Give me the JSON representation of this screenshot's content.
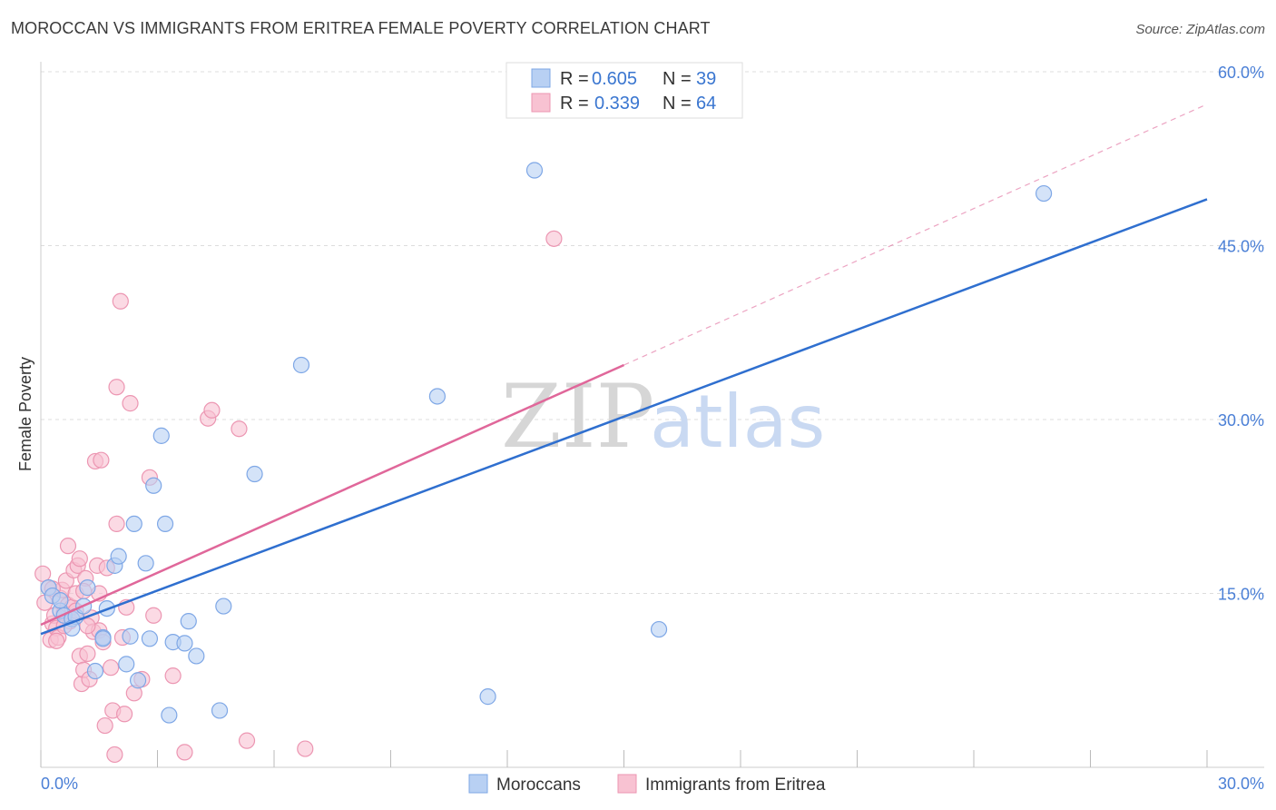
{
  "title": "MOROCCAN VS IMMIGRANTS FROM ERITREA FEMALE POVERTY CORRELATION CHART",
  "source": "Source: ZipAtlas.com",
  "watermark": {
    "zip": "ZIP",
    "atlas": "atlas"
  },
  "legend": {
    "r_label": "R =",
    "n_label": "N =",
    "rows": [
      {
        "r": "0.605",
        "n": "39"
      },
      {
        "r": "0.339",
        "n": "64"
      }
    ]
  },
  "colors": {
    "blue_fill": "#b8d0f3",
    "blue_stroke": "#7ea7e6",
    "blue_line": "#2f6fcf",
    "pink_fill": "#f8c2d2",
    "pink_stroke": "#ec96b2",
    "pink_line": "#e0679a",
    "grid": "#dddddd",
    "axis_text": "#4a7fd6"
  },
  "chart_data": {
    "type": "scatter",
    "title": "MOROCCAN VS IMMIGRANTS FROM ERITREA FEMALE POVERTY CORRELATION CHART",
    "xlabel": "",
    "ylabel": "Female Poverty",
    "xlim": [
      0,
      30
    ],
    "ylim": [
      0,
      60
    ],
    "x_tick_labels": [
      "0.0%",
      "30.0%"
    ],
    "y_ticks": [
      15,
      30,
      45,
      60
    ],
    "y_tick_labels": [
      "15.0%",
      "30.0%",
      "45.0%",
      "60.0%"
    ],
    "grid": true,
    "legend_position": "bottom-center",
    "series": [
      {
        "name": "Moroccans",
        "r": 0.605,
        "n": 39,
        "trend": {
          "x": [
            0,
            30
          ],
          "y": [
            11.5,
            49.0
          ],
          "style": "solid"
        },
        "points": [
          {
            "x": 0.2,
            "y": 15.5
          },
          {
            "x": 0.3,
            "y": 14.8
          },
          {
            "x": 0.5,
            "y": 13.5
          },
          {
            "x": 0.5,
            "y": 14.4
          },
          {
            "x": 0.6,
            "y": 13.1
          },
          {
            "x": 0.8,
            "y": 12.8
          },
          {
            "x": 0.9,
            "y": 13.0
          },
          {
            "x": 0.8,
            "y": 12.0
          },
          {
            "x": 1.1,
            "y": 13.9
          },
          {
            "x": 1.2,
            "y": 15.5
          },
          {
            "x": 1.4,
            "y": 8.3
          },
          {
            "x": 1.6,
            "y": 11.2
          },
          {
            "x": 1.7,
            "y": 13.7
          },
          {
            "x": 1.9,
            "y": 17.4
          },
          {
            "x": 2.0,
            "y": 18.2
          },
          {
            "x": 2.2,
            "y": 8.9
          },
          {
            "x": 2.3,
            "y": 11.3
          },
          {
            "x": 2.4,
            "y": 21.0
          },
          {
            "x": 2.5,
            "y": 7.5
          },
          {
            "x": 2.7,
            "y": 17.6
          },
          {
            "x": 2.8,
            "y": 11.1
          },
          {
            "x": 2.9,
            "y": 24.3
          },
          {
            "x": 3.1,
            "y": 28.6
          },
          {
            "x": 3.2,
            "y": 21.0
          },
          {
            "x": 3.3,
            "y": 4.5
          },
          {
            "x": 3.4,
            "y": 10.8
          },
          {
            "x": 3.7,
            "y": 10.7
          },
          {
            "x": 3.8,
            "y": 12.6
          },
          {
            "x": 4.0,
            "y": 9.6
          },
          {
            "x": 4.6,
            "y": 4.9
          },
          {
            "x": 4.7,
            "y": 13.9
          },
          {
            "x": 5.5,
            "y": 25.3
          },
          {
            "x": 6.7,
            "y": 34.7
          },
          {
            "x": 10.2,
            "y": 32.0
          },
          {
            "x": 11.5,
            "y": 6.1
          },
          {
            "x": 12.7,
            "y": 51.5
          },
          {
            "x": 15.9,
            "y": 11.9
          },
          {
            "x": 25.8,
            "y": 49.5
          },
          {
            "x": 1.6,
            "y": 11.1
          }
        ]
      },
      {
        "name": "Immigrants from Eritrea",
        "r": 0.339,
        "n": 64,
        "trend": {
          "x": [
            0,
            15
          ],
          "y": [
            12.3,
            34.7
          ],
          "style": "solid",
          "extension": {
            "x": [
              15,
              30
            ],
            "y": [
              34.7,
              57.2
            ],
            "style": "dashed"
          }
        },
        "points": [
          {
            "x": 0.05,
            "y": 16.7
          },
          {
            "x": 0.1,
            "y": 14.2
          },
          {
            "x": 0.2,
            "y": 15.5
          },
          {
            "x": 0.25,
            "y": 11.0
          },
          {
            "x": 0.3,
            "y": 12.4
          },
          {
            "x": 0.35,
            "y": 13.1
          },
          {
            "x": 0.4,
            "y": 12.0
          },
          {
            "x": 0.45,
            "y": 11.2
          },
          {
            "x": 0.5,
            "y": 14.6
          },
          {
            "x": 0.55,
            "y": 15.3
          },
          {
            "x": 0.6,
            "y": 13.3
          },
          {
            "x": 0.65,
            "y": 16.1
          },
          {
            "x": 0.7,
            "y": 14.0
          },
          {
            "x": 0.75,
            "y": 12.6
          },
          {
            "x": 0.8,
            "y": 13.8
          },
          {
            "x": 0.85,
            "y": 17.0
          },
          {
            "x": 0.9,
            "y": 15.0
          },
          {
            "x": 0.7,
            "y": 19.1
          },
          {
            "x": 0.95,
            "y": 17.4
          },
          {
            "x": 1.0,
            "y": 9.6
          },
          {
            "x": 1.05,
            "y": 7.2
          },
          {
            "x": 1.0,
            "y": 18.0
          },
          {
            "x": 1.1,
            "y": 8.4
          },
          {
            "x": 1.15,
            "y": 16.3
          },
          {
            "x": 1.2,
            "y": 9.8
          },
          {
            "x": 1.25,
            "y": 7.6
          },
          {
            "x": 1.3,
            "y": 12.9
          },
          {
            "x": 1.35,
            "y": 11.7
          },
          {
            "x": 1.4,
            "y": 26.4
          },
          {
            "x": 1.45,
            "y": 17.4
          },
          {
            "x": 1.5,
            "y": 15.0
          },
          {
            "x": 1.5,
            "y": 11.8
          },
          {
            "x": 1.55,
            "y": 26.5
          },
          {
            "x": 1.6,
            "y": 10.8
          },
          {
            "x": 1.65,
            "y": 3.6
          },
          {
            "x": 1.7,
            "y": 17.2
          },
          {
            "x": 1.8,
            "y": 8.6
          },
          {
            "x": 1.85,
            "y": 4.9
          },
          {
            "x": 1.9,
            "y": 1.1
          },
          {
            "x": 1.95,
            "y": 21.0
          },
          {
            "x": 1.95,
            "y": 32.8
          },
          {
            "x": 2.05,
            "y": 40.2
          },
          {
            "x": 2.1,
            "y": 11.2
          },
          {
            "x": 2.15,
            "y": 4.6
          },
          {
            "x": 2.2,
            "y": 13.8
          },
          {
            "x": 2.3,
            "y": 31.4
          },
          {
            "x": 2.4,
            "y": 6.4
          },
          {
            "x": 2.6,
            "y": 7.6
          },
          {
            "x": 2.8,
            "y": 25.0
          },
          {
            "x": 2.9,
            "y": 13.1
          },
          {
            "x": 3.4,
            "y": 7.9
          },
          {
            "x": 3.7,
            "y": 1.3
          },
          {
            "x": 4.3,
            "y": 30.1
          },
          {
            "x": 4.4,
            "y": 30.8
          },
          {
            "x": 5.1,
            "y": 29.2
          },
          {
            "x": 5.3,
            "y": 2.3
          },
          {
            "x": 6.8,
            "y": 1.6
          },
          {
            "x": 13.2,
            "y": 45.6
          },
          {
            "x": 0.3,
            "y": 15.4
          },
          {
            "x": 0.6,
            "y": 12.2
          },
          {
            "x": 0.4,
            "y": 10.9
          },
          {
            "x": 1.1,
            "y": 15.2
          },
          {
            "x": 0.9,
            "y": 13.5
          },
          {
            "x": 1.2,
            "y": 12.2
          }
        ]
      }
    ]
  }
}
